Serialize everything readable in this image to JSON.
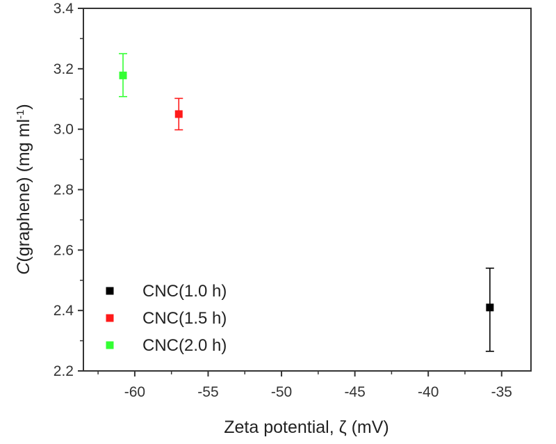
{
  "chart_data": {
    "type": "scatter",
    "title": "",
    "xlabel": "Zeta potential, ζ (mV)",
    "ylabel_parts": {
      "italic": "C",
      "main": "(graphene) (mg ml",
      "sup": "-1",
      "close": ")"
    },
    "xlim": [
      -63.5,
      -33
    ],
    "ylim": [
      2.2,
      3.4
    ],
    "xticks": [
      -60,
      -55,
      -50,
      -45,
      -40,
      -35
    ],
    "yticks": [
      2.2,
      2.4,
      2.6,
      2.8,
      3.0,
      3.2,
      3.4
    ],
    "ytick_labels": [
      "2.2",
      "2.4",
      "2.6",
      "2.8",
      "3.0",
      "3.2",
      "3.4"
    ],
    "legend_position": "bottom-left",
    "series": [
      {
        "name": "CNC(1.0 h)",
        "color": "#000000",
        "x": -35.8,
        "y": 2.41,
        "err_low": 2.265,
        "err_high": 2.54
      },
      {
        "name": "CNC(1.5 h)",
        "color": "#ff1a1a",
        "x": -57.0,
        "y": 3.05,
        "err_low": 2.998,
        "err_high": 3.102
      },
      {
        "name": "CNC(2.0 h)",
        "color": "#33ff33",
        "x": -60.8,
        "y": 3.178,
        "err_low": 3.108,
        "err_high": 3.25
      }
    ]
  }
}
